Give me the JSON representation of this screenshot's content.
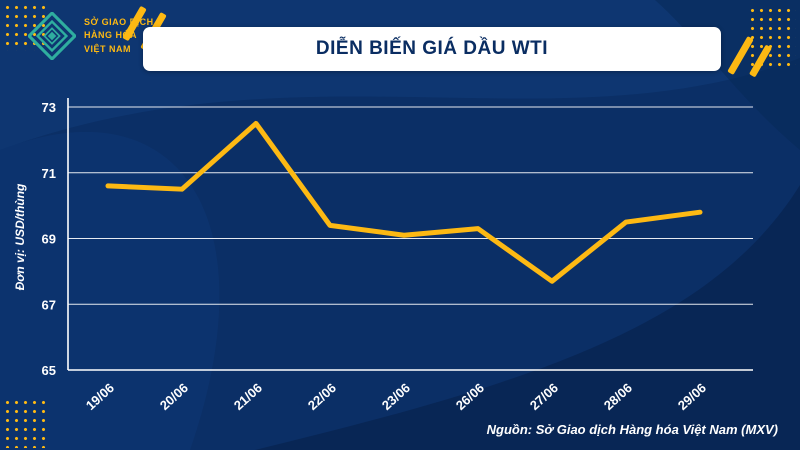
{
  "header": {
    "title": "DIỄN BIẾN GIÁ DẦU WTI",
    "logo": {
      "line1": "SỞ GIAO DỊCH",
      "line2": "HÀNG HÓA",
      "line3": "VIỆT NAM"
    }
  },
  "chart_data": {
    "type": "line",
    "title": "DIỄN BIẾN GIÁ DẦU WTI",
    "categories": [
      "19/06",
      "20/06",
      "21/06",
      "22/06",
      "23/06",
      "26/06",
      "27/06",
      "28/06",
      "29/06"
    ],
    "values": [
      70.6,
      70.5,
      72.5,
      69.4,
      69.1,
      69.3,
      67.7,
      69.5,
      69.8
    ],
    "ylabel": "Đơn vị: USD/thùng",
    "xlabel": "",
    "yticks": [
      73,
      71,
      69,
      67,
      65
    ],
    "ylim": [
      65,
      73
    ],
    "grid": true,
    "legend_position": "none",
    "line_color": "#fdb913"
  },
  "source": "Nguồn: Sở Giao dịch Hàng hóa Việt Nam (MXV)",
  "colors": {
    "background": "#0b2f66",
    "accent_yellow": "#fdb913",
    "logo_teal": "#2fae9f",
    "title_text": "#0a2d62",
    "axis_white": "#ffffff"
  }
}
